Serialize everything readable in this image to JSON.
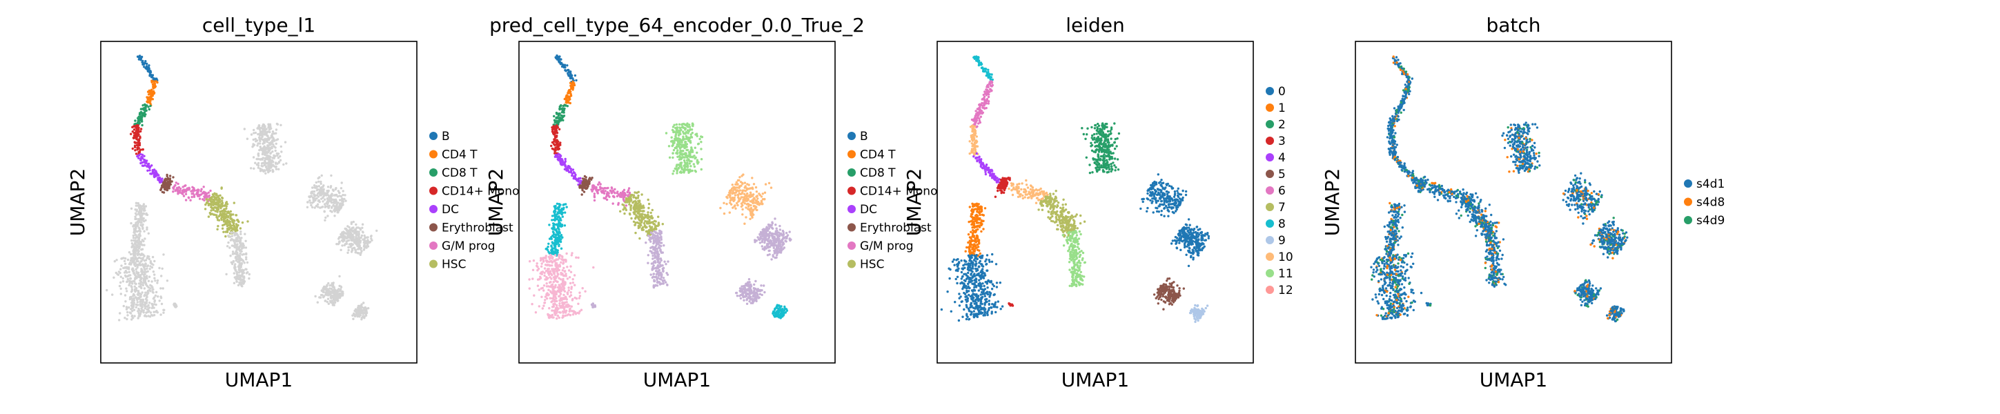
{
  "chart_data": [
    {
      "type": "scatter",
      "title": "cell_type_l1",
      "xlabel": "UMAP1",
      "ylabel": "UMAP2",
      "grid": false,
      "legend_position": "right",
      "legend": [
        {
          "name": "B",
          "color": "#1f77b4"
        },
        {
          "name": "CD4 T",
          "color": "#ff7f0e"
        },
        {
          "name": "CD8 T",
          "color": "#279e68"
        },
        {
          "name": "CD14+ Mono",
          "color": "#d62728"
        },
        {
          "name": "DC",
          "color": "#aa40fc"
        },
        {
          "name": "Erythroblast",
          "color": "#8c564b"
        },
        {
          "name": "G/M prog",
          "color": "#e377c2"
        },
        {
          "name": "HSC",
          "color": "#b5bd61"
        }
      ],
      "colors": [
        "#1f77b4",
        "#ff7f0e",
        "#279e68",
        "#d62728",
        "#aa40fc",
        "#8c564b",
        "#e377c2",
        "#b5bd61",
        "#d3d3d3",
        "#d3d3d3",
        "#d3d3d3",
        "#d3d3d3",
        "#d3d3d3",
        "#d3d3d3",
        "#d3d3d3",
        "#d3d3d3",
        "#d3d3d3"
      ]
    },
    {
      "type": "scatter",
      "title": "pred_cell_type_64_encoder_0.0_True_2",
      "xlabel": "UMAP1",
      "ylabel": "UMAP2",
      "grid": false,
      "legend_position": "right",
      "legend": [
        {
          "name": "B",
          "color": "#1f77b4"
        },
        {
          "name": "CD4 T",
          "color": "#ff7f0e"
        },
        {
          "name": "CD8 T",
          "color": "#279e68"
        },
        {
          "name": "CD14+ Mono",
          "color": "#d62728"
        },
        {
          "name": "DC",
          "color": "#aa40fc"
        },
        {
          "name": "Erythroblast",
          "color": "#8c564b"
        },
        {
          "name": "G/M prog",
          "color": "#e377c2"
        },
        {
          "name": "HSC",
          "color": "#b5bd61"
        }
      ],
      "colors": [
        "#1f77b4",
        "#ff7f0e",
        "#279e68",
        "#d62728",
        "#aa40fc",
        "#8c564b",
        "#e377c2",
        "#b5bd61",
        "#c5b0d5",
        "#17becf",
        "#f7b6d2",
        "#98df8a",
        "#ffbb78",
        "#c5b0d5",
        "#c5b0d5",
        "#17becf",
        "#c5b0d5"
      ]
    },
    {
      "type": "scatter",
      "title": "leiden",
      "xlabel": "UMAP1",
      "ylabel": "UMAP2",
      "grid": false,
      "legend_position": "right",
      "legend": [
        {
          "name": "0",
          "color": "#1f77b4"
        },
        {
          "name": "1",
          "color": "#ff7f0e"
        },
        {
          "name": "2",
          "color": "#279e68"
        },
        {
          "name": "3",
          "color": "#d62728"
        },
        {
          "name": "4",
          "color": "#aa40fc"
        },
        {
          "name": "5",
          "color": "#8c564b"
        },
        {
          "name": "6",
          "color": "#e377c2"
        },
        {
          "name": "7",
          "color": "#b5bd61"
        },
        {
          "name": "8",
          "color": "#17becf"
        },
        {
          "name": "9",
          "color": "#aec7e8"
        },
        {
          "name": "10",
          "color": "#ffbb78"
        },
        {
          "name": "11",
          "color": "#98df8a"
        },
        {
          "name": "12",
          "color": "#ff9896"
        }
      ],
      "colors": [
        "#17becf",
        "#e377c2",
        "#e377c2",
        "#ffbb78",
        "#aa40fc",
        "#d62728",
        "#ffbb78",
        "#b5bd61",
        "#98df8a",
        "#ff7f0e",
        "#1f77b4",
        "#279e68",
        "#1f77b4",
        "#1f77b4",
        "#8c564b",
        "#aec7e8",
        "#d62728"
      ]
    },
    {
      "type": "scatter",
      "title": "batch",
      "xlabel": "UMAP1",
      "ylabel": "UMAP2",
      "grid": false,
      "legend_position": "right",
      "legend": [
        {
          "name": "s4d1",
          "color": "#1f77b4"
        },
        {
          "name": "s4d8",
          "color": "#ff7f0e"
        },
        {
          "name": "s4d9",
          "color": "#279e68"
        }
      ],
      "colors": [
        "#1f77b4",
        "#1f77b4",
        "#1f77b4",
        "#1f77b4",
        "#1f77b4",
        "#1f77b4",
        "#1f77b4",
        "#1f77b4",
        "#1f77b4",
        "#1f77b4",
        "#1f77b4",
        "#1f77b4",
        "#1f77b4",
        "#1f77b4",
        "#1f77b4",
        "#1f77b4",
        "#1f77b4"
      ],
      "mix_colors": [
        "#ff7f0e",
        "#279e68"
      ]
    }
  ]
}
